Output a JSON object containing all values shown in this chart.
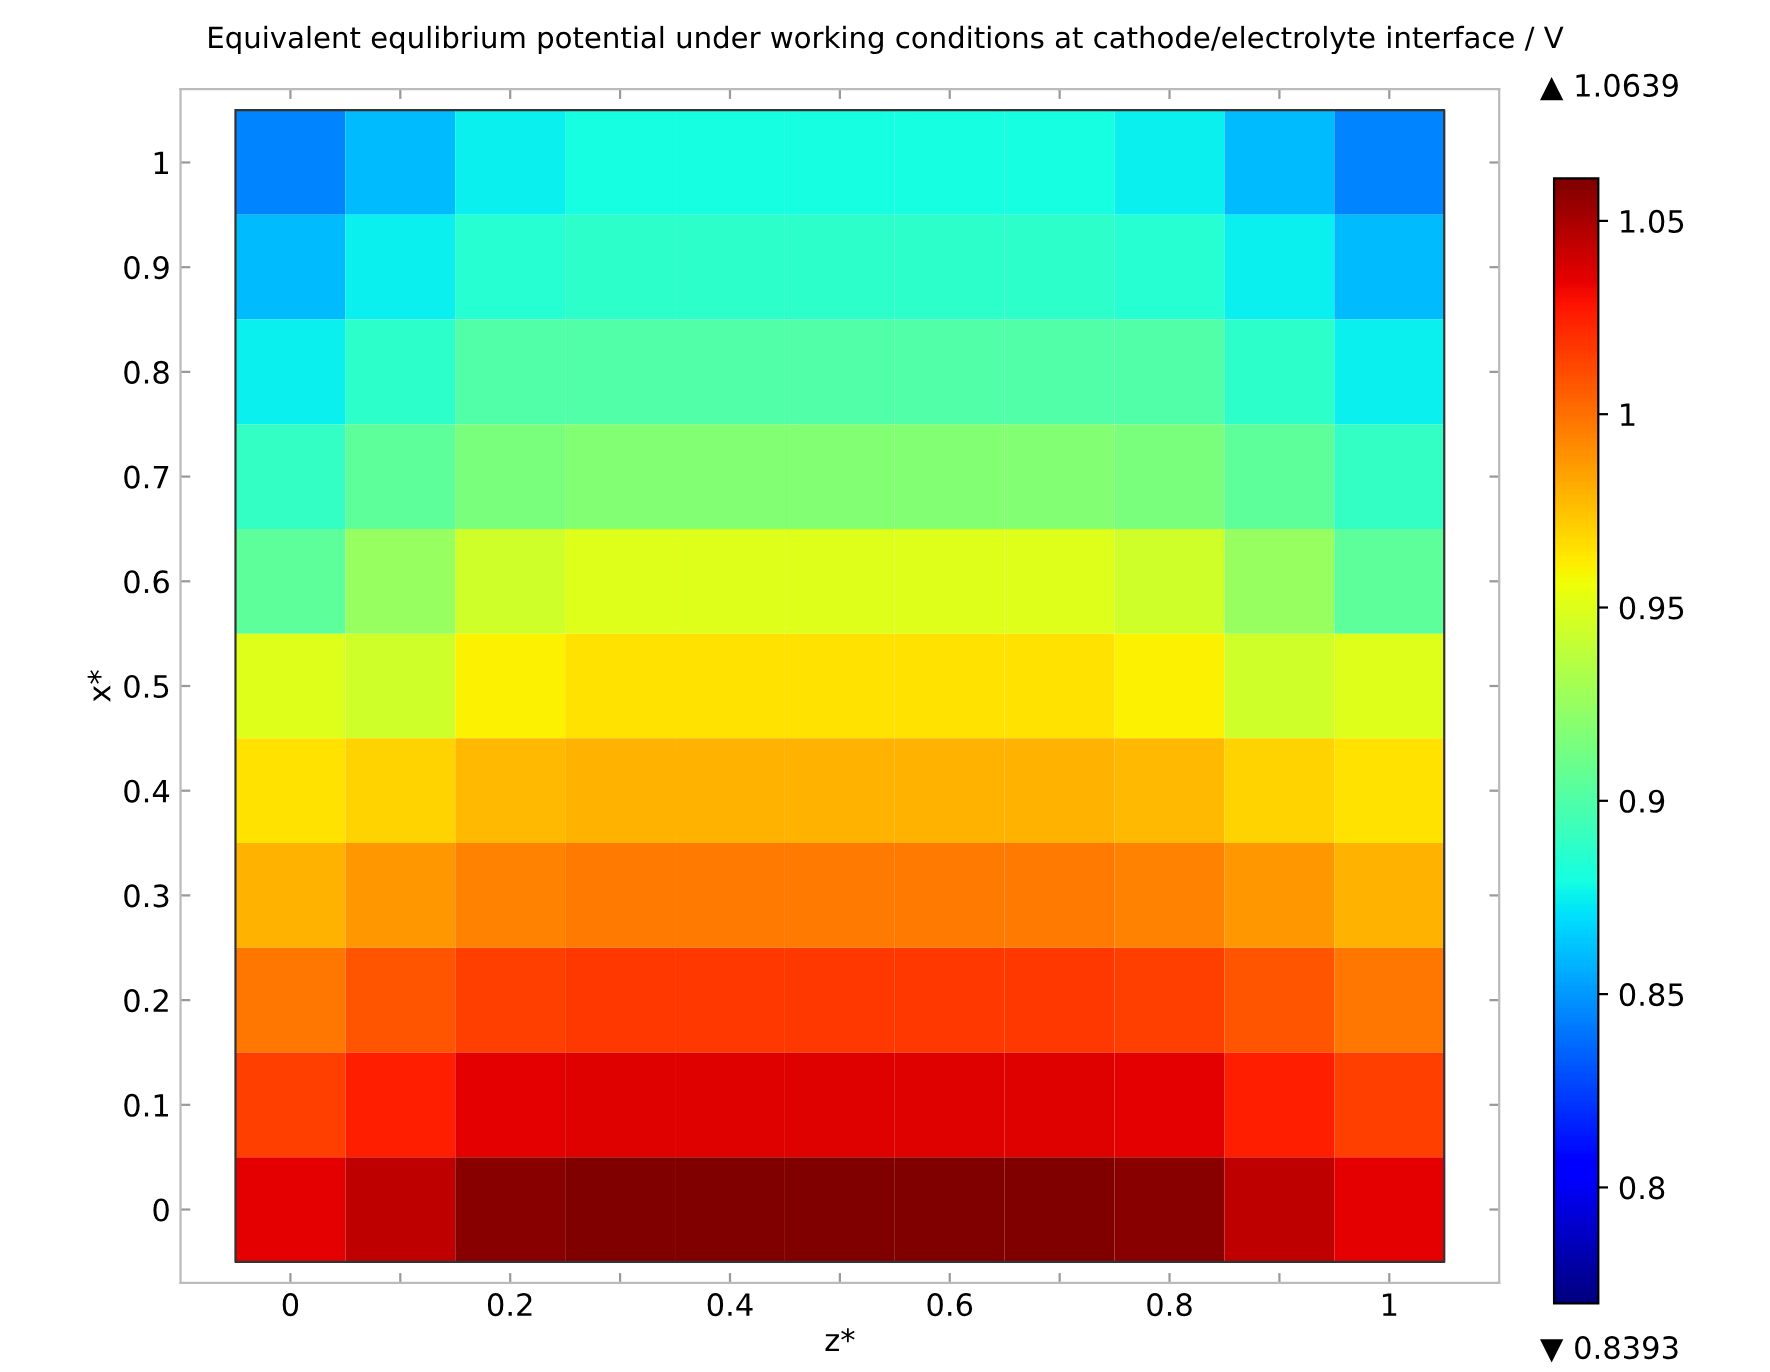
{
  "chart_data": {
    "type": "heatmap",
    "title": "Equivalent equlibrium potential under working conditions at cathode/electrolyte interface / V",
    "xlabel": "z*",
    "ylabel": "x*",
    "categories": [
      "0",
      null,
      "0.2",
      null,
      "0.4",
      null,
      "0.6",
      null,
      "0.8",
      null,
      "1"
    ],
    "y_categories": [
      "1",
      "0.9",
      "0.8",
      "0.7",
      "0.6",
      "0.5",
      "0.4",
      "0.3",
      "0.2",
      "0.1",
      "0"
    ],
    "cells": [
      [
        0.845,
        0.86,
        0.875,
        0.88,
        0.88,
        0.88,
        0.88,
        0.88,
        0.875,
        0.86,
        0.845
      ],
      [
        0.86,
        0.875,
        0.885,
        0.888,
        0.888,
        0.888,
        0.888,
        0.888,
        0.885,
        0.875,
        0.86
      ],
      [
        0.875,
        0.888,
        0.9,
        0.9,
        0.9,
        0.9,
        0.9,
        0.9,
        0.9,
        0.888,
        0.875
      ],
      [
        0.89,
        0.905,
        0.915,
        0.918,
        0.918,
        0.918,
        0.918,
        0.918,
        0.915,
        0.905,
        0.89
      ],
      [
        0.905,
        0.925,
        0.945,
        0.95,
        0.95,
        0.95,
        0.95,
        0.95,
        0.945,
        0.925,
        0.905
      ],
      [
        0.95,
        0.945,
        0.96,
        0.965,
        0.965,
        0.965,
        0.965,
        0.965,
        0.96,
        0.945,
        0.95
      ],
      [
        0.965,
        0.97,
        0.978,
        0.98,
        0.98,
        0.98,
        0.98,
        0.98,
        0.978,
        0.97,
        0.965
      ],
      [
        0.98,
        0.988,
        0.995,
        0.997,
        0.997,
        0.997,
        0.997,
        0.997,
        0.995,
        0.988,
        0.98
      ],
      [
        0.998,
        1.008,
        1.015,
        1.017,
        1.017,
        1.017,
        1.017,
        1.017,
        1.015,
        1.008,
        0.998
      ],
      [
        1.015,
        1.025,
        1.035,
        1.037,
        1.037,
        1.037,
        1.037,
        1.037,
        1.035,
        1.025,
        1.015
      ],
      [
        1.035,
        1.045,
        1.058,
        1.06,
        1.06,
        1.06,
        1.06,
        1.06,
        1.058,
        1.045,
        1.035
      ]
    ],
    "clim": [
      0.77,
      1.061
    ],
    "cticks": [
      0.8,
      0.85,
      0.9,
      0.95,
      1,
      1.05
    ],
    "grid": false,
    "annotations": [
      "▲ 1.0639",
      "▼ 0.8393"
    ]
  }
}
